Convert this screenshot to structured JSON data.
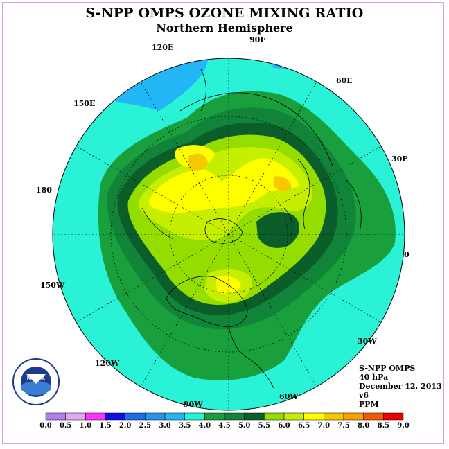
{
  "title": "S-NPP OMPS OZONE MIXING RATIO",
  "subtitle": "Northern Hemisphere",
  "longitude_labels": {
    "e120": "120E",
    "e90": "90E",
    "e60": "60E",
    "e150": "150E",
    "e30": "30E",
    "d180": "180",
    "d0": "0",
    "w150": "150W",
    "w30": "30W",
    "w120": "120W",
    "w60": "60W",
    "w90": "90W"
  },
  "info": {
    "instrument": "S-NPP OMPS",
    "level": "40 hPa",
    "date": "December 12, 2013",
    "version": "v6",
    "units": "PPM"
  },
  "colorbar": {
    "ticks": [
      "0.0",
      "0.5",
      "1.0",
      "1.5",
      "2.0",
      "2.5",
      "3.0",
      "3.5",
      "4.0",
      "4.5",
      "5.0",
      "5.5",
      "6.0",
      "6.5",
      "7.0",
      "7.5",
      "8.0",
      "8.5",
      "9.0"
    ],
    "colors": [
      "#b57fe8",
      "#e2a8ef",
      "#ff33ff",
      "#1010e0",
      "#1e6ee8",
      "#2596f0",
      "#22b6f6",
      "#22f5d8",
      "#19a03c",
      "#12843a",
      "#0b5e29",
      "#95dc00",
      "#c6ee00",
      "#ffff00",
      "#f7c800",
      "#f7a000",
      "#f55a00",
      "#ee0000",
      "#8c5a3c"
    ]
  },
  "map_colors": {
    "ocean_ring": "#2af2d6",
    "band_4_5": "#19a03c",
    "band_4_5b": "#12843a",
    "band_5": "#0b5e29",
    "band_5_5": "#95dc00",
    "band_6": "#c6ee00",
    "band_6_5": "#ffff00",
    "band_7": "#f7c800",
    "band_low": "#22b6f6"
  },
  "logo_text": "NOAA"
}
